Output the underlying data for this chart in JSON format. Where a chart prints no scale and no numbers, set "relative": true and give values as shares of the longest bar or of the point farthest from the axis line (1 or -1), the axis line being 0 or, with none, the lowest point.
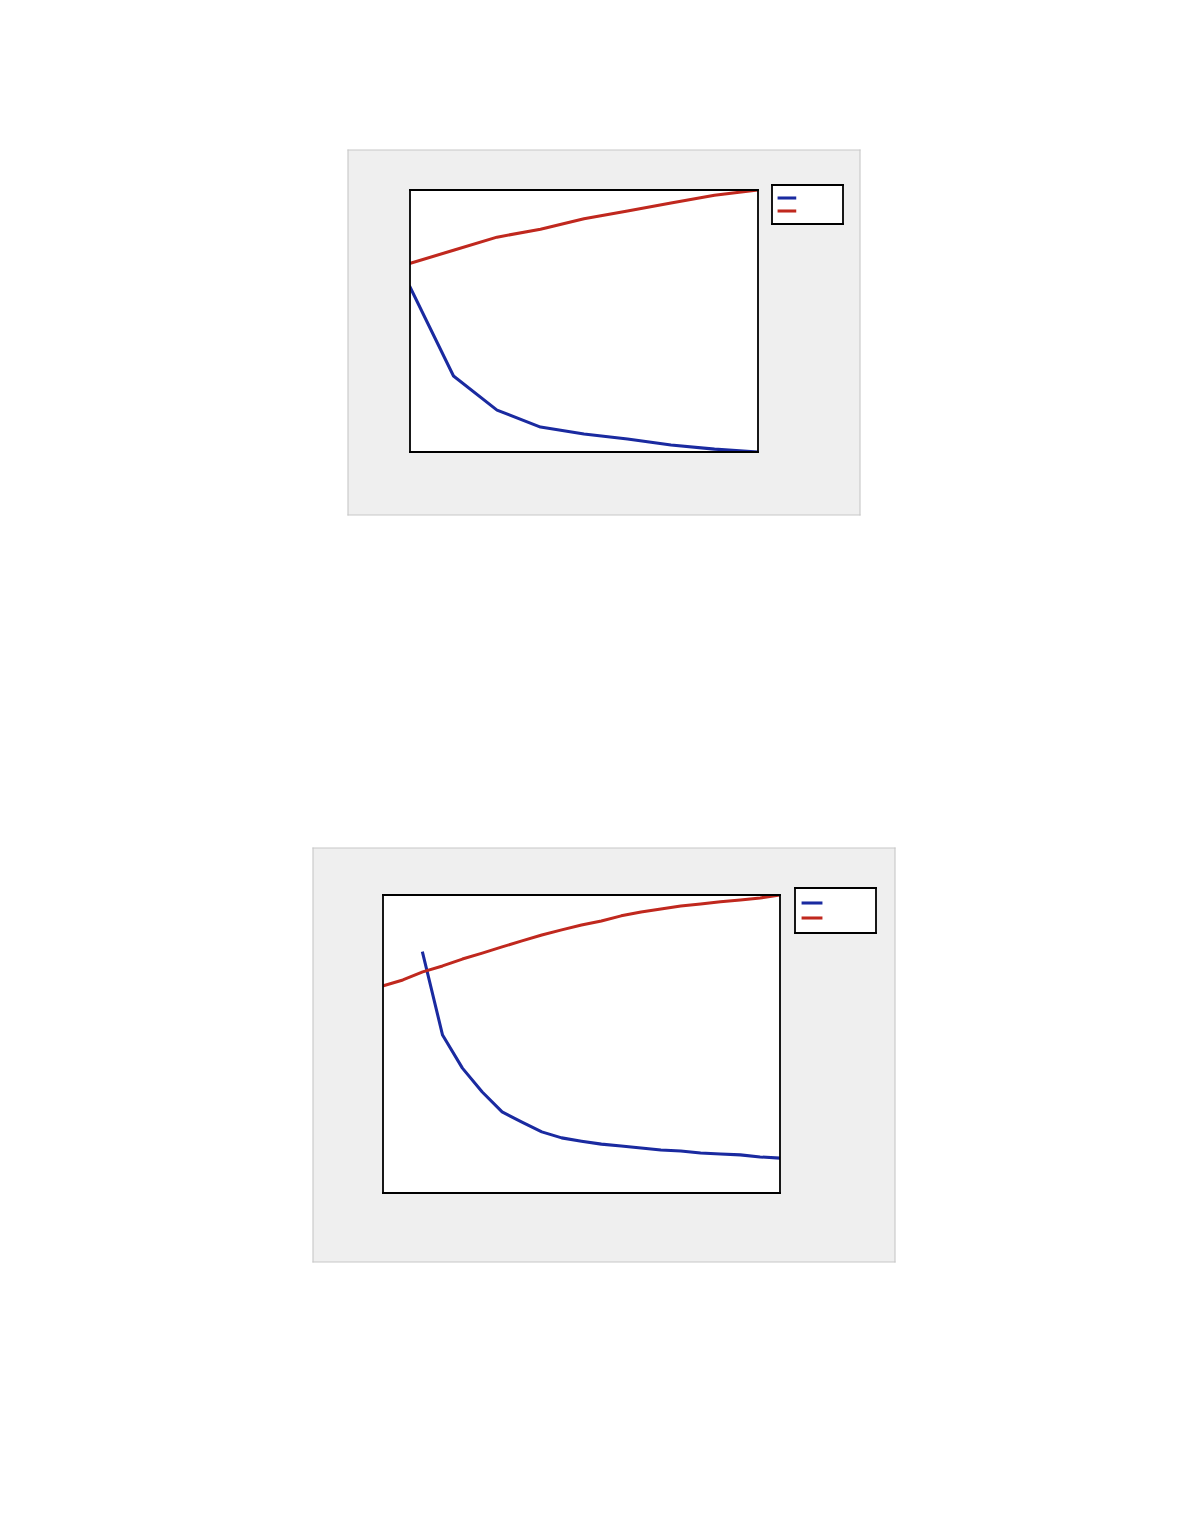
{
  "chart_data": [
    {
      "type": "line",
      "relative": true,
      "categories": [
        null,
        null,
        null,
        null,
        null,
        null,
        null,
        null,
        null
      ],
      "series": [
        {
          "color": "#1a2aa0",
          "values": [
            0.63,
            0.29,
            0.16,
            0.095,
            0.069,
            0.05,
            0.027,
            0.011,
            0.0
          ]
        },
        {
          "color": "#c0281e",
          "values": [
            0.72,
            0.77,
            0.82,
            0.85,
            0.89,
            0.92,
            0.95,
            0.98,
            1.0
          ]
        }
      ]
    },
    {
      "type": "line",
      "relative": true,
      "categories": [
        null,
        null,
        null,
        null,
        null,
        null,
        null,
        null,
        null,
        null,
        null,
        null,
        null,
        null,
        null,
        null,
        null,
        null,
        null,
        null,
        null
      ],
      "series": [
        {
          "color": "#1a2aa0",
          "values": [
            null,
            null,
            0.805,
            0.53,
            0.419,
            0.339,
            0.272,
            0.238,
            0.205,
            0.185,
            0.174,
            0.164,
            0.158,
            0.151,
            0.144,
            0.141,
            0.134,
            0.131,
            0.128,
            0.121,
            0.117
          ]
        },
        {
          "color": "#c0281e",
          "values": [
            0.695,
            0.715,
            0.742,
            0.762,
            0.785,
            0.805,
            0.826,
            0.846,
            0.866,
            0.883,
            0.899,
            0.913,
            0.93,
            0.943,
            0.953,
            0.963,
            0.97,
            0.977,
            0.983,
            0.99,
            1.0
          ]
        }
      ]
    }
  ]
}
